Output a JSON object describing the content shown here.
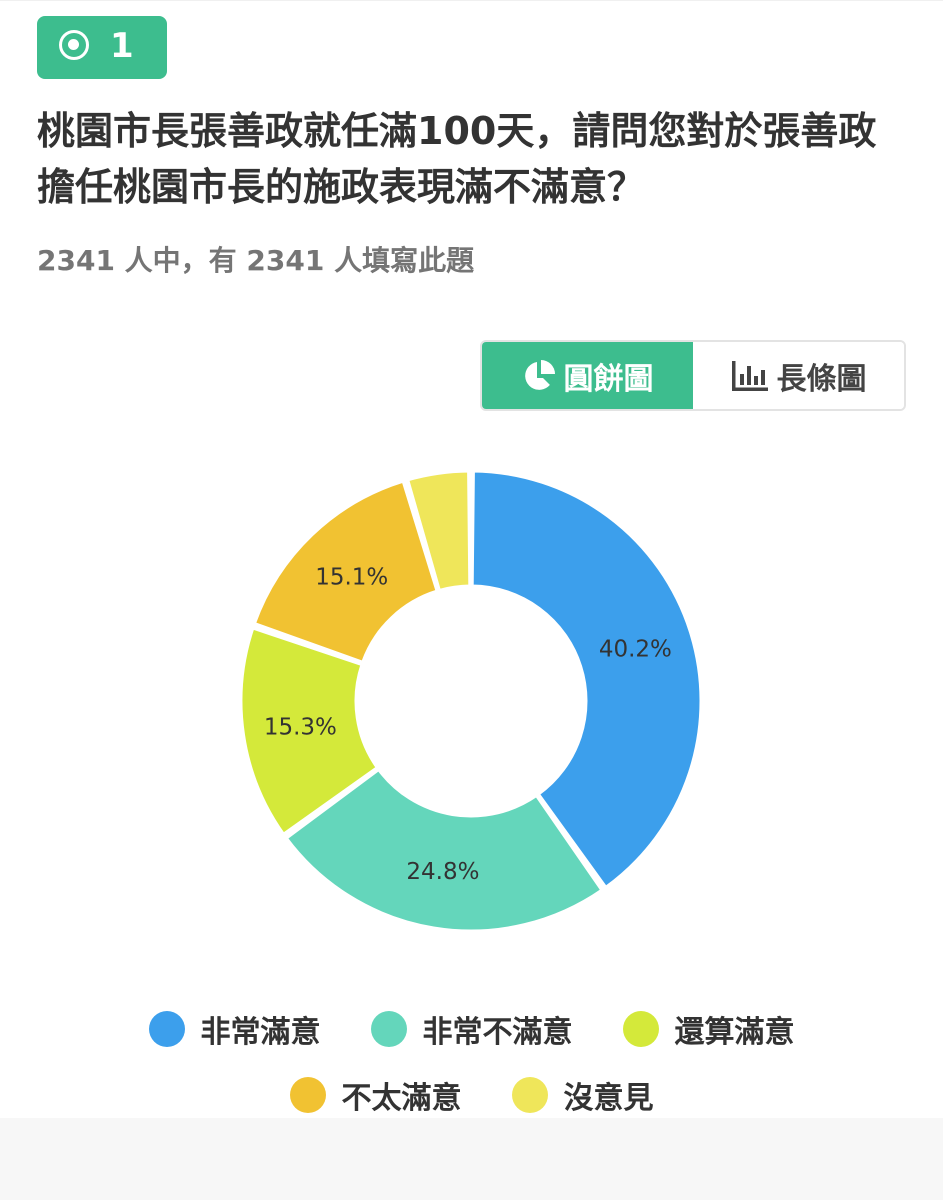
{
  "question": {
    "number": "1",
    "title": "桃園市長張善政就任滿100天，請問您對於張善政擔任桃園市長的施政表現滿不滿意？",
    "respondents": "2341 人中，有 2341 人填寫此題"
  },
  "view_toggle": {
    "pie_label": "圓餅圖",
    "bar_label": "長條圖",
    "active": "pie"
  },
  "colors": {
    "accent": "#3dbd8e"
  },
  "chart_data": {
    "type": "pie",
    "donut": true,
    "categories": [
      "非常滿意",
      "非常不滿意",
      "還算滿意",
      "不太滿意",
      "沒意見"
    ],
    "values": [
      40.2,
      24.8,
      15.3,
      15.1,
      4.6
    ],
    "labels": [
      "40.2%",
      "24.8%",
      "15.3%",
      "15.1%",
      ""
    ],
    "colors": [
      "#3c9fec",
      "#64d6bb",
      "#d4e93a",
      "#f1c232",
      "#efe65a"
    ],
    "legend": "bottom"
  }
}
